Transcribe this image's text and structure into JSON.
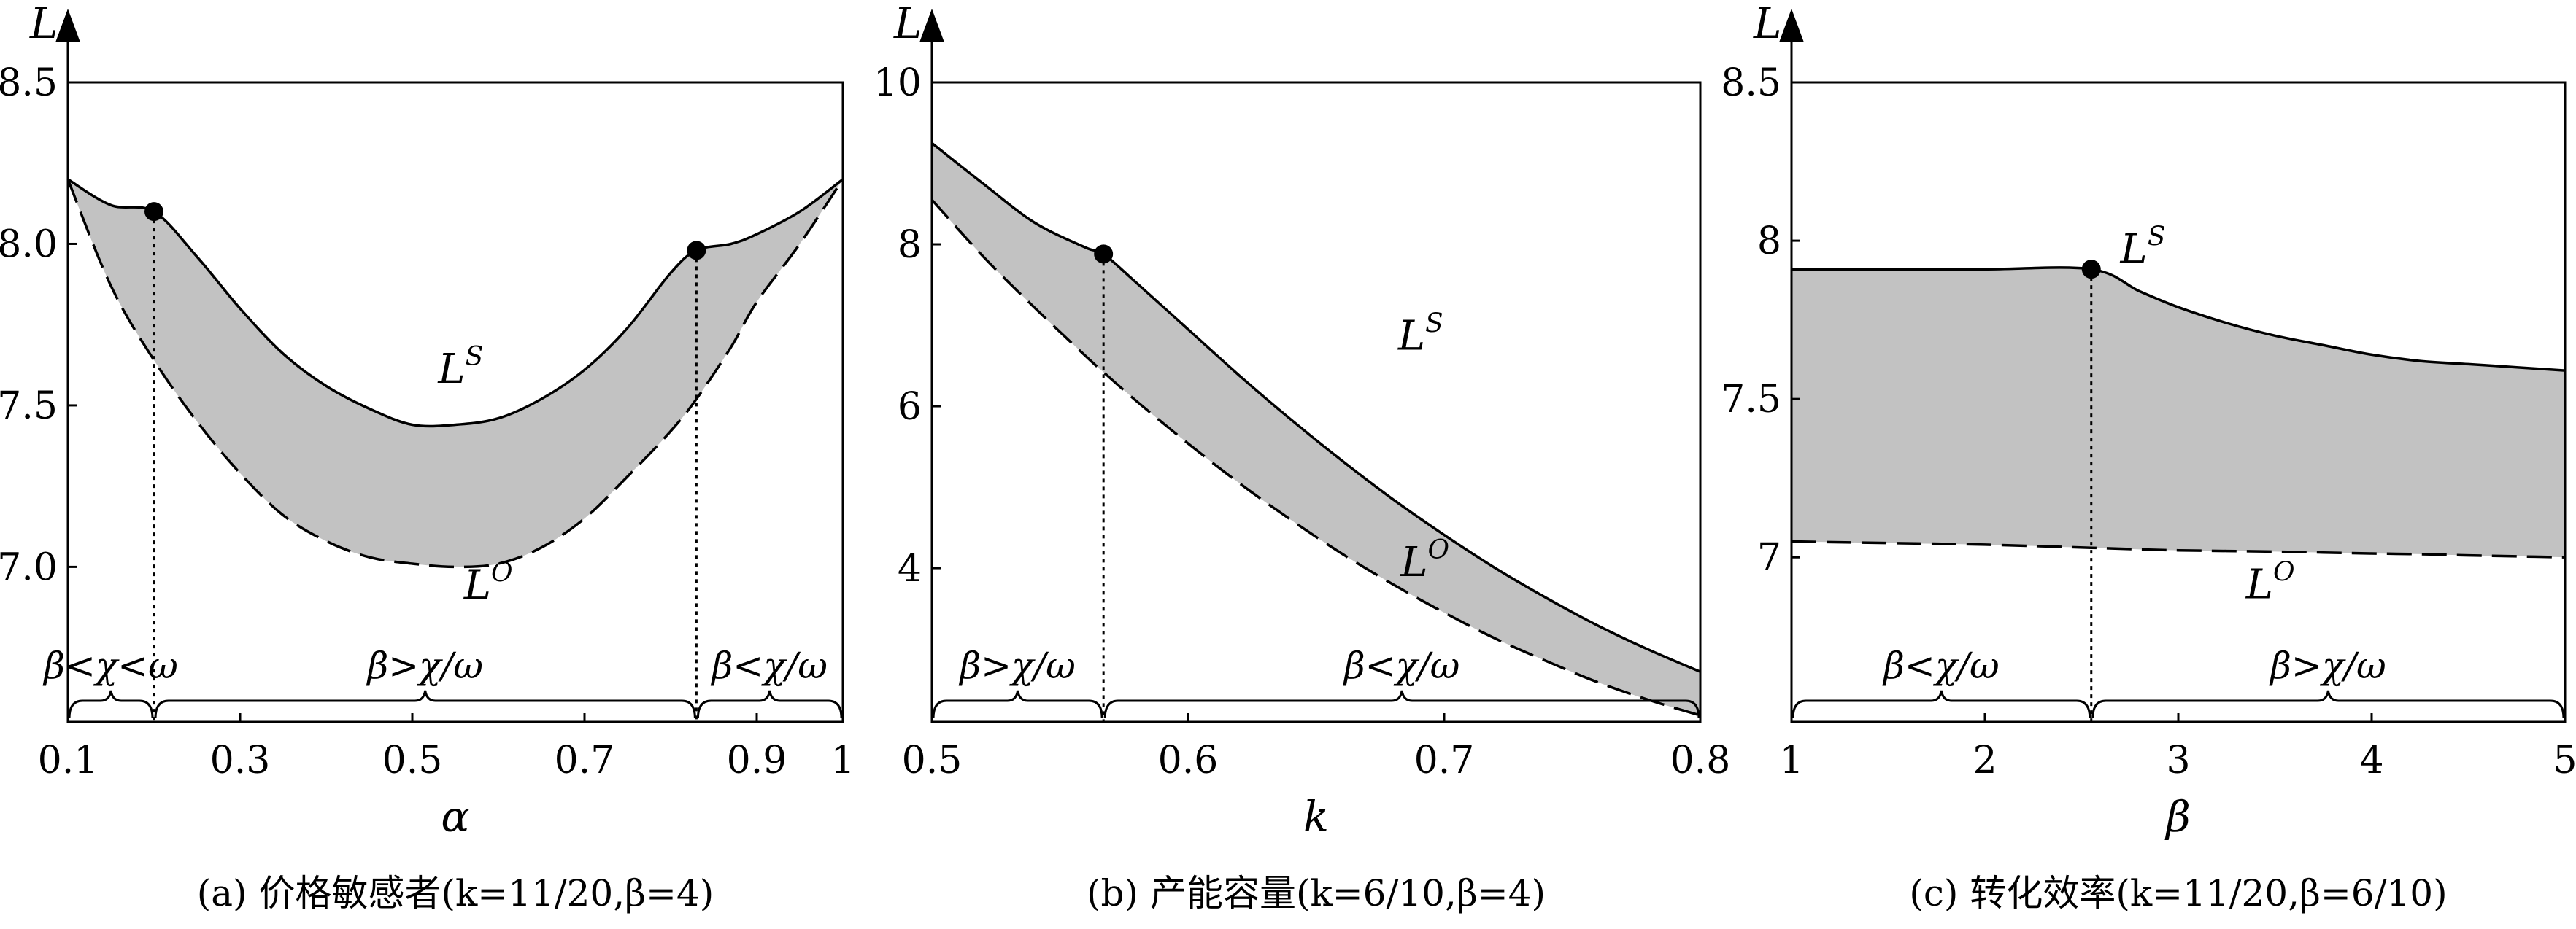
{
  "chart_data": [
    {
      "type": "area",
      "title": "(a) 价格敏感者(k=11/20,β=4)",
      "xlabel": "α",
      "ylabel": "L",
      "xlim": [
        0.1,
        1.0
      ],
      "ylim": [
        6.52,
        8.5
      ],
      "xticks": [
        "0.1",
        "0.3",
        "0.5",
        "0.7",
        "0.9",
        "1"
      ],
      "yticks": [
        "7.0",
        "7.5",
        "8.0",
        "8.5"
      ],
      "x": [
        0.1,
        0.15,
        0.2,
        0.25,
        0.3,
        0.35,
        0.4,
        0.45,
        0.5,
        0.55,
        0.6,
        0.65,
        0.7,
        0.75,
        0.8,
        0.83,
        0.87,
        0.9,
        0.95,
        1.0
      ],
      "series": [
        {
          "name": "LS",
          "style": "solid",
          "values": [
            8.2,
            8.12,
            8.1,
            7.96,
            7.8,
            7.66,
            7.56,
            7.49,
            7.44,
            7.44,
            7.46,
            7.52,
            7.61,
            7.74,
            7.91,
            7.98,
            8.0,
            8.03,
            8.1,
            8.2
          ]
        },
        {
          "name": "LO",
          "style": "dashed",
          "values": [
            8.2,
            7.87,
            7.64,
            7.45,
            7.29,
            7.16,
            7.08,
            7.03,
            7.01,
            7.0,
            7.01,
            7.06,
            7.15,
            7.28,
            7.42,
            7.52,
            7.68,
            7.82,
            8.0,
            8.2
          ]
        }
      ],
      "labels": [
        {
          "base": "L",
          "sup": "S",
          "x": 0.53,
          "y": 7.57
        },
        {
          "base": "L",
          "sup": "O",
          "x": 0.56,
          "y": 6.9
        }
      ],
      "breakpoints": [
        {
          "x": 0.2,
          "y": 8.1
        },
        {
          "x": 0.83,
          "y": 7.98
        }
      ],
      "regions": [
        {
          "label": "β<χ<ω",
          "from": 0.1,
          "to": 0.2
        },
        {
          "label": "β>χ/ω",
          "from": 0.2,
          "to": 0.83
        },
        {
          "label": "β<χ/ω",
          "from": 0.83,
          "to": 1.0
        }
      ]
    },
    {
      "type": "area",
      "title": "(b) 产能容量(k=6/10,β=4)",
      "xlabel": "k",
      "ylabel": "L",
      "xlim": [
        0.5,
        0.8
      ],
      "ylim": [
        2.1,
        10.0
      ],
      "xticks": [
        "0.5",
        "0.6",
        "0.7",
        "0.8"
      ],
      "yticks": [
        "4",
        "6",
        "8",
        "10"
      ],
      "x": [
        0.5,
        0.52,
        0.54,
        0.56,
        0.567,
        0.58,
        0.6,
        0.62,
        0.64,
        0.66,
        0.68,
        0.7,
        0.72,
        0.74,
        0.76,
        0.78,
        0.8
      ],
      "series": [
        {
          "name": "LS",
          "style": "solid",
          "values": [
            9.25,
            8.75,
            8.27,
            7.96,
            7.88,
            7.52,
            6.95,
            6.38,
            5.84,
            5.33,
            4.85,
            4.41,
            4.0,
            3.63,
            3.29,
            2.99,
            2.72
          ]
        },
        {
          "name": "LO",
          "style": "dashed",
          "values": [
            8.55,
            7.85,
            7.22,
            6.62,
            6.42,
            6.06,
            5.54,
            5.05,
            4.6,
            4.18,
            3.8,
            3.45,
            3.13,
            2.85,
            2.59,
            2.37,
            2.18
          ]
        }
      ],
      "labels": [
        {
          "base": "L",
          "sup": "S",
          "x": 0.682,
          "y": 6.7
        },
        {
          "base": "L",
          "sup": "O",
          "x": 0.683,
          "y": 3.9
        }
      ],
      "breakpoints": [
        {
          "x": 0.567,
          "y": 7.88
        }
      ],
      "regions": [
        {
          "label": "β>χ/ω",
          "from": 0.5,
          "to": 0.567
        },
        {
          "label": "β<χ/ω",
          "from": 0.567,
          "to": 0.8
        }
      ]
    },
    {
      "type": "area",
      "title": "(c) 转化效率(k=11/20,β=6/10)",
      "xlabel": "β",
      "ylabel": "L",
      "xlim": [
        1,
        5
      ],
      "ylim": [
        6.48,
        8.5
      ],
      "xticks": [
        "1",
        "2",
        "3",
        "4",
        "5"
      ],
      "yticks": [
        "7",
        "7.5",
        "8",
        "8.5"
      ],
      "x": [
        1,
        1.5,
        2,
        2.55,
        2.8,
        3,
        3.25,
        3.5,
        3.75,
        4,
        4.25,
        4.5,
        4.75,
        5
      ],
      "series": [
        {
          "name": "LS",
          "style": "solid",
          "values": [
            7.91,
            7.91,
            7.91,
            7.91,
            7.84,
            7.79,
            7.74,
            7.7,
            7.67,
            7.64,
            7.62,
            7.61,
            7.6,
            7.59
          ]
        },
        {
          "name": "LO",
          "style": "dashed",
          "values": [
            7.05,
            7.045,
            7.04,
            7.03,
            7.025,
            7.022,
            7.02,
            7.018,
            7.015,
            7.012,
            7.01,
            7.006,
            7.003,
            7.0
          ]
        }
      ],
      "labels": [
        {
          "base": "L",
          "sup": "S",
          "x": 2.7,
          "y": 7.93
        },
        {
          "base": "L",
          "sup": "O",
          "x": 3.35,
          "y": 6.87
        }
      ],
      "breakpoints": [
        {
          "x": 2.55,
          "y": 7.91
        }
      ],
      "regions": [
        {
          "label": "β<χ/ω",
          "from": 1,
          "to": 2.55
        },
        {
          "label": "β>χ/ω",
          "from": 2.55,
          "to": 5
        }
      ]
    }
  ]
}
